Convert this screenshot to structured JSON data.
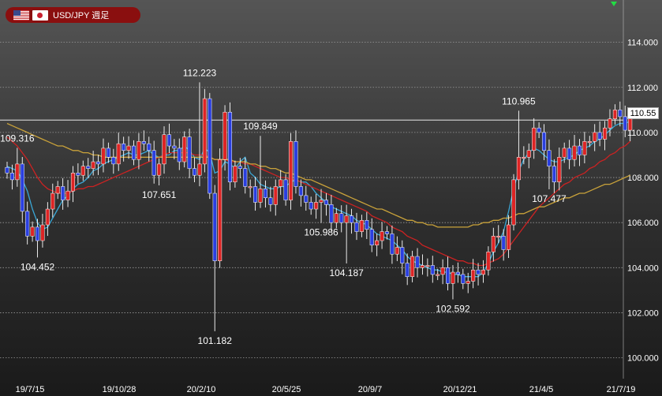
{
  "title": "USD/JPY 週足",
  "current_price_label": "110.55",
  "current_price": 110.55,
  "colors": {
    "up": "#dd2424",
    "down": "#2a3fe0",
    "ma_short": "#3aa7d6",
    "ma_mid": "#cc2222",
    "ma_long": "#c9a23a",
    "badge": "#8a0f0f",
    "marker": "#22dd44"
  },
  "chart_data": {
    "type": "candlestick",
    "title": "USD/JPY 週足",
    "ylim": [
      99.5,
      115.5
    ],
    "y_ticks": [
      "100.000",
      "102.000",
      "104.000",
      "106.000",
      "108.000",
      "110.000",
      "112.000",
      "114.000"
    ],
    "x_ticks": [
      "19/7/15",
      "19/10/28",
      "20/2/10",
      "20/5/25",
      "20/9/7",
      "20/12/21",
      "21/4/5",
      "21/7/19"
    ],
    "grid": true,
    "annotations": [
      {
        "text": "109.316",
        "value": 109.316
      },
      {
        "text": "104.452",
        "value": 104.452
      },
      {
        "text": "107.651",
        "value": 107.651
      },
      {
        "text": "112.223",
        "value": 112.223
      },
      {
        "text": "101.182",
        "value": 101.182
      },
      {
        "text": "109.849",
        "value": 109.849
      },
      {
        "text": "105.986",
        "value": 105.986
      },
      {
        "text": "104.187",
        "value": 104.187
      },
      {
        "text": "102.592",
        "value": 102.592
      },
      {
        "text": "110.965",
        "value": 110.965
      },
      {
        "text": "107.477",
        "value": 107.477
      }
    ],
    "closes": [
      108.2,
      107.9,
      108.6,
      106.5,
      105.4,
      105.8,
      105.2,
      105.9,
      106.6,
      107.3,
      107.6,
      107.0,
      107.4,
      108.2,
      108.1,
      108.5,
      108.4,
      108.7,
      108.6,
      109.3,
      108.9,
      108.6,
      109.5,
      109.2,
      109.4,
      108.8,
      109.6,
      109.5,
      109.2,
      108.1,
      108.6,
      109.9,
      109.4,
      109.3,
      108.7,
      109.8,
      108.4,
      108.1,
      108.6,
      111.5,
      107.3,
      104.3,
      108.8,
      110.9,
      107.8,
      108.5,
      108.4,
      107.6,
      107.6,
      106.9,
      107.5,
      107.1,
      106.8,
      107.6,
      107.9,
      107.0,
      109.6,
      107.6,
      107.2,
      106.9,
      106.6,
      106.9,
      107.0,
      106.8,
      106.0,
      106.4,
      106.0,
      106.3,
      106.0,
      105.6,
      106.1,
      105.7,
      105.0,
      105.2,
      105.6,
      105.5,
      104.6,
      104.9,
      104.2,
      103.6,
      104.5,
      104.0,
      104.1,
      104.1,
      103.7,
      103.7,
      104.0,
      103.3,
      103.8,
      103.7,
      103.3,
      103.4,
      103.9,
      103.7,
      103.9,
      104.7,
      105.4,
      105.4,
      104.8,
      105.9,
      107.9,
      108.9,
      108.9,
      109.2,
      110.2,
      110.0,
      109.2,
      108.5,
      107.8,
      108.9,
      109.3,
      108.8,
      109.4,
      109.0,
      109.6,
      109.6,
      110.0,
      109.7,
      110.2,
      110.6,
      111.0,
      110.7,
      110.1,
      110.6
    ],
    "series": [
      {
        "type": "ma_short",
        "values": [
          108.5,
          108.4,
          108.3,
          107.9,
          107.4,
          106.6,
          106.0,
          105.7,
          105.8,
          106.2,
          106.6,
          107.0,
          107.2,
          107.5,
          107.7,
          107.8,
          108.0,
          108.3,
          108.4,
          108.6,
          108.7,
          108.8,
          108.9,
          109.0,
          109.1,
          109.0,
          109.0,
          109.1,
          109.2,
          109.0,
          108.9,
          109.0,
          109.0,
          109.2,
          109.2,
          109.4,
          109.2,
          108.9,
          108.8,
          109.3,
          109.1,
          108.2,
          108.3,
          108.7,
          108.6,
          108.4,
          108.7,
          108.9,
          108.2,
          108.0,
          107.7,
          107.6,
          107.5,
          107.5,
          107.6,
          107.6,
          107.8,
          107.9,
          107.8,
          107.8,
          107.6,
          107.3,
          107.1,
          106.9,
          106.7,
          106.6,
          106.5,
          106.4,
          106.3,
          106.1,
          106.0,
          105.9,
          105.7,
          105.5,
          105.4,
          105.3,
          105.2,
          105.0,
          104.8,
          104.5,
          104.3,
          104.2,
          104.1,
          104.0,
          103.9,
          103.9,
          103.8,
          103.8,
          103.7,
          103.7,
          103.6,
          103.6,
          103.6,
          103.6,
          103.8,
          104.2,
          104.7,
          105.1,
          105.6,
          106.5,
          107.5,
          108.3,
          108.8,
          109.1,
          109.3,
          109.2,
          109.0,
          108.8,
          108.7,
          108.7,
          108.8,
          108.9,
          109.0,
          109.2,
          109.3,
          109.4,
          109.6,
          109.7,
          109.9,
          110.1,
          110.3,
          110.4,
          110.4,
          110.5
        ]
      },
      {
        "type": "ma_mid",
        "values": [
          109.8,
          109.6,
          109.4,
          109.1,
          108.8,
          108.4,
          108.0,
          107.7,
          107.5,
          107.4,
          107.3,
          107.3,
          107.3,
          107.4,
          107.5,
          107.5,
          107.6,
          107.6,
          107.7,
          107.8,
          107.9,
          108.0,
          108.1,
          108.2,
          108.3,
          108.4,
          108.5,
          108.6,
          108.7,
          108.8,
          108.9,
          109.0,
          109.1,
          109.1,
          109.1,
          109.1,
          109.1,
          109.0,
          109.0,
          109.0,
          108.9,
          108.8,
          108.8,
          108.8,
          108.7,
          108.7,
          108.7,
          108.6,
          108.6,
          108.5,
          108.4,
          108.3,
          108.2,
          108.1,
          108.0,
          108.0,
          107.9,
          107.9,
          107.8,
          107.7,
          107.6,
          107.5,
          107.4,
          107.3,
          107.2,
          107.1,
          107.0,
          106.9,
          106.8,
          106.7,
          106.6,
          106.5,
          106.3,
          106.2,
          106.1,
          106.0,
          105.8,
          105.7,
          105.6,
          105.4,
          105.3,
          105.2,
          105.0,
          104.9,
          104.8,
          104.7,
          104.6,
          104.5,
          104.4,
          104.3,
          104.3,
          104.2,
          104.2,
          104.1,
          104.1,
          104.2,
          104.3,
          104.4,
          104.6,
          104.9,
          105.2,
          105.5,
          105.8,
          106.1,
          106.4,
          106.7,
          106.9,
          107.1,
          107.3,
          107.5,
          107.7,
          107.8,
          108.0,
          108.1,
          108.2,
          108.4,
          108.5,
          108.7,
          108.8,
          109.0,
          109.1,
          109.3,
          109.4,
          109.6
        ]
      },
      {
        "type": "ma_long",
        "values": [
          110.4,
          110.3,
          110.2,
          110.1,
          110.0,
          109.9,
          109.8,
          109.7,
          109.6,
          109.5,
          109.4,
          109.4,
          109.3,
          109.2,
          109.2,
          109.1,
          109.1,
          109.0,
          109.0,
          108.9,
          108.9,
          108.9,
          108.9,
          108.9,
          108.9,
          108.9,
          108.9,
          108.9,
          108.9,
          108.9,
          108.9,
          108.9,
          108.9,
          108.9,
          108.9,
          108.9,
          108.9,
          108.9,
          108.9,
          108.9,
          108.9,
          108.8,
          108.8,
          108.8,
          108.8,
          108.7,
          108.7,
          108.7,
          108.6,
          108.6,
          108.5,
          108.5,
          108.4,
          108.4,
          108.3,
          108.2,
          108.2,
          108.1,
          108.0,
          107.9,
          107.9,
          107.8,
          107.7,
          107.6,
          107.5,
          107.4,
          107.3,
          107.2,
          107.1,
          107.0,
          106.9,
          106.8,
          106.7,
          106.6,
          106.6,
          106.5,
          106.4,
          106.3,
          106.2,
          106.1,
          106.1,
          106.0,
          106.0,
          105.9,
          105.9,
          105.8,
          105.8,
          105.8,
          105.8,
          105.8,
          105.8,
          105.8,
          105.9,
          105.9,
          106.0,
          106.0,
          106.1,
          106.1,
          106.2,
          106.2,
          106.3,
          106.4,
          106.4,
          106.5,
          106.6,
          106.7,
          106.7,
          106.8,
          106.9,
          107.0,
          107.1,
          107.1,
          107.2,
          107.3,
          107.3,
          107.4,
          107.5,
          107.6,
          107.7,
          107.7,
          107.8,
          107.9,
          108.0,
          108.1
        ]
      }
    ]
  }
}
